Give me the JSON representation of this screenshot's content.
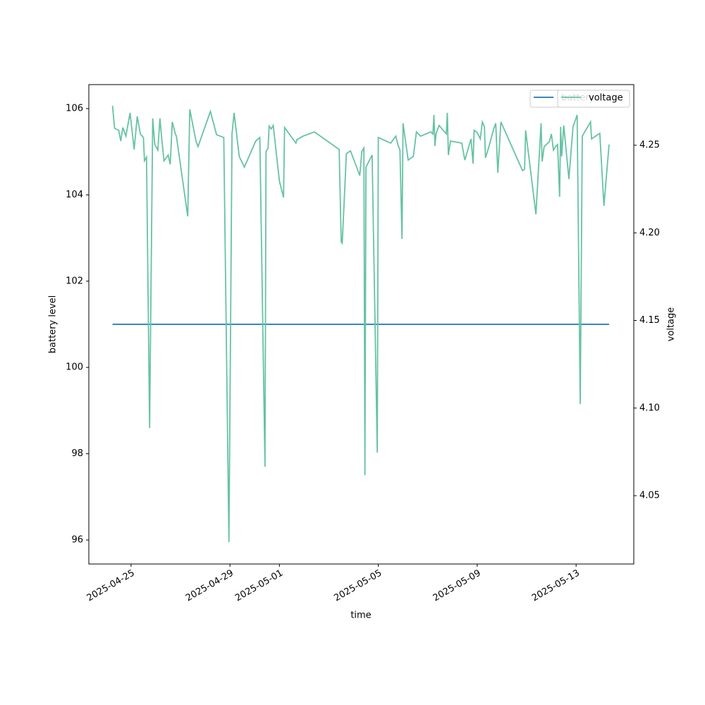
{
  "chart_data": {
    "type": "line",
    "xlabel": "time",
    "ylabel": "battery level",
    "y2label": "voltage",
    "x": [
      "2025-04-24 06:00",
      "2025-04-24 08:00",
      "2025-04-24 12:00",
      "2025-04-24 14:00",
      "2025-04-24 16:00",
      "2025-04-24 19:00",
      "2025-04-24 23:00",
      "2025-04-25 03:00",
      "2025-04-25 06:00",
      "2025-04-25 09:00",
      "2025-04-25 12:00",
      "2025-04-25 13:00",
      "2025-04-25 15:00",
      "2025-04-25 18:00",
      "2025-04-25 21:00",
      "2025-04-25 23:00",
      "2025-04-26 02:00",
      "2025-04-26 04:00",
      "2025-04-26 06:00",
      "2025-04-26 08:00",
      "2025-04-26 12:00",
      "2025-04-26 14:00",
      "2025-04-26 16:00",
      "2025-04-26 19:00",
      "2025-04-26 20:00",
      "2025-04-27 07:00",
      "2025-04-27 09:00",
      "2025-04-27 15:00",
      "2025-04-27 17:00",
      "2025-04-28 05:00",
      "2025-04-28 11:00",
      "2025-04-28 18:00",
      "2025-04-28 23:00",
      "2025-04-29 02:00",
      "2025-04-29 04:00",
      "2025-04-29 09:00",
      "2025-04-29 14:00",
      "2025-04-30 01:00",
      "2025-04-30 05:00",
      "2025-04-30 10:00",
      "2025-04-30 11:00",
      "2025-04-30 13:00",
      "2025-04-30 14:00",
      "2025-04-30 16:00",
      "2025-04-30 18:00",
      "2025-05-01 00:00",
      "2025-05-01 04:00",
      "2025-05-01 05:00",
      "2025-05-01 16:00",
      "2025-05-01 17:00",
      "2025-05-01 23:00",
      "2025-05-02 10:00",
      "2025-05-03 10:00",
      "2025-05-03 12:00",
      "2025-05-03 13:00",
      "2025-05-03 17:00",
      "2025-05-03 21:00",
      "2025-05-04 06:00",
      "2025-05-04 08:00",
      "2025-05-04 10:00",
      "2025-05-04 11:00",
      "2025-05-04 12:00",
      "2025-05-04 18:00",
      "2025-05-04 23:00",
      "2025-05-05 00:00",
      "2025-05-05 12:00",
      "2025-05-05 17:00",
      "2025-05-05 19:00",
      "2025-05-05 21:00",
      "2025-05-05 23:00",
      "2025-05-06 00:00",
      "2025-05-06 05:00",
      "2025-05-06 10:00",
      "2025-05-06 13:00",
      "2025-05-06 17:00",
      "2025-05-07 03:00",
      "2025-05-07 05:00",
      "2025-05-07 06:00",
      "2025-05-07 07:00",
      "2025-05-07 08:00",
      "2025-05-07 11:00",
      "2025-05-07 18:00",
      "2025-05-07 19:00",
      "2025-05-07 20:00",
      "2025-05-07 22:00",
      "2025-05-08 09:00",
      "2025-05-08 12:00",
      "2025-05-08 18:00",
      "2025-05-08 20:00",
      "2025-05-08 21:00",
      "2025-05-09 00:00",
      "2025-05-09 03:00",
      "2025-05-09 05:00",
      "2025-05-09 07:00",
      "2025-05-09 08:00",
      "2025-05-09 11:00",
      "2025-05-09 16:00",
      "2025-05-09 18:00",
      "2025-05-09 20:00",
      "2025-05-09 23:00",
      "2025-05-10 20:00",
      "2025-05-10 22:00",
      "2025-05-10 23:00",
      "2025-05-11 09:00",
      "2025-05-11 14:00",
      "2025-05-11 15:00",
      "2025-05-11 17:00",
      "2025-05-11 22:00",
      "2025-05-12 00:00",
      "2025-05-12 02:00",
      "2025-05-12 04:00",
      "2025-05-12 06:00",
      "2025-05-12 08:00",
      "2025-05-12 09:00",
      "2025-05-12 10:00",
      "2025-05-12 12:00",
      "2025-05-12 17:00",
      "2025-05-12 21:00",
      "2025-05-13 01:00",
      "2025-05-13 04:00",
      "2025-05-13 06:00",
      "2025-05-13 14:00",
      "2025-05-13 15:00",
      "2025-05-13 23:00",
      "2025-05-14 03:00",
      "2025-05-14 08:00"
    ],
    "series": [
      {
        "name": "battery",
        "color": "#1f77b4",
        "axis": "y",
        "values": [
          101,
          101,
          101,
          101,
          101,
          101,
          101,
          101,
          101,
          101,
          101,
          101,
          101,
          101,
          101,
          101,
          101,
          101,
          101,
          101,
          101,
          101,
          101,
          101,
          101,
          101,
          101,
          101,
          101,
          101,
          101,
          101,
          101,
          101,
          101,
          101,
          101,
          101,
          101,
          101,
          101,
          101,
          101,
          101,
          101,
          101,
          101,
          101,
          101,
          101,
          101,
          101,
          101,
          101,
          101,
          101,
          101,
          101,
          101,
          101,
          101,
          101,
          101,
          101,
          101,
          101,
          101,
          101,
          101,
          101,
          101,
          101,
          101,
          101,
          101,
          101,
          101,
          101,
          101,
          101,
          101,
          101,
          101,
          101,
          101,
          101,
          101,
          101,
          101,
          101,
          101,
          101,
          101,
          101,
          101,
          101,
          101,
          101,
          101,
          101,
          101,
          101,
          101,
          101,
          101,
          101,
          101,
          101,
          101,
          101,
          101,
          101,
          101,
          101,
          101,
          101,
          101,
          101,
          101,
          101,
          101,
          101,
          101,
          101,
          101,
          101
        ]
      },
      {
        "name": "voltage",
        "color": "#66c2a5",
        "axis": "y2",
        "values": [
          4.2725,
          4.2597,
          4.2585,
          4.2524,
          4.2601,
          4.2552,
          4.2685,
          4.2476,
          4.2665,
          4.2564,
          4.2544,
          4.2411,
          4.2432,
          4.0886,
          4.2653,
          4.2504,
          4.2472,
          4.2653,
          4.2524,
          4.2411,
          4.2444,
          4.2391,
          4.2633,
          4.2564,
          4.2552,
          4.2094,
          4.2705,
          4.2524,
          4.2492,
          4.2693,
          4.256,
          4.2544,
          4.0235,
          4.2564,
          4.2685,
          4.2436,
          4.2375,
          4.2524,
          4.2544,
          4.0665,
          4.2464,
          4.2484,
          4.2609,
          4.2593,
          4.2613,
          4.2295,
          4.2202,
          4.2601,
          4.2512,
          4.2532,
          4.2552,
          4.2576,
          4.2476,
          4.1949,
          4.1941,
          4.2452,
          4.2468,
          4.2327,
          4.2464,
          4.2484,
          4.0617,
          4.2375,
          4.2444,
          4.0746,
          4.2544,
          4.2512,
          4.2552,
          4.2504,
          4.2472,
          4.1965,
          4.2625,
          4.2415,
          4.2436,
          4.2576,
          4.2552,
          4.2576,
          4.2564,
          4.2673,
          4.2496,
          4.2564,
          4.2613,
          4.2564,
          4.2685,
          4.2444,
          4.2524,
          4.2512,
          4.2415,
          4.2536,
          4.2395,
          4.2585,
          4.2572,
          4.2536,
          4.2633,
          4.2605,
          4.2428,
          4.2484,
          4.2593,
          4.2625,
          4.2343,
          4.2633,
          4.2355,
          4.2363,
          4.2585,
          4.2106,
          4.2625,
          4.2407,
          4.2492,
          4.252,
          4.2564,
          4.2472,
          4.2492,
          4.2504,
          4.2206,
          4.2605,
          4.2436,
          4.2613,
          4.2307,
          4.2605,
          4.2673,
          4.1023,
          4.2552,
          4.2633,
          4.2536,
          4.2568,
          4.2154,
          4.2504
        ]
      }
    ],
    "xlim": [
      "2025-04-23 07:00",
      "2025-05-15 08:00"
    ],
    "xticks": [
      "2025-04-25",
      "2025-04-29",
      "2025-05-01",
      "2025-05-05",
      "2025-05-09",
      "2025-05-13"
    ],
    "ylim": [
      95.444,
      106.556
    ],
    "yticks": [
      96,
      98,
      100,
      102,
      104,
      106
    ],
    "y2lim": [
      4.011,
      4.2846
    ],
    "y2ticks": [
      4.05,
      {
        "value": 4.1,
        "label": "4.10"
      },
      4.15,
      {
        "value": 4.2,
        "label": "4.20"
      },
      4.25
    ],
    "legend_loc": "upper right"
  }
}
